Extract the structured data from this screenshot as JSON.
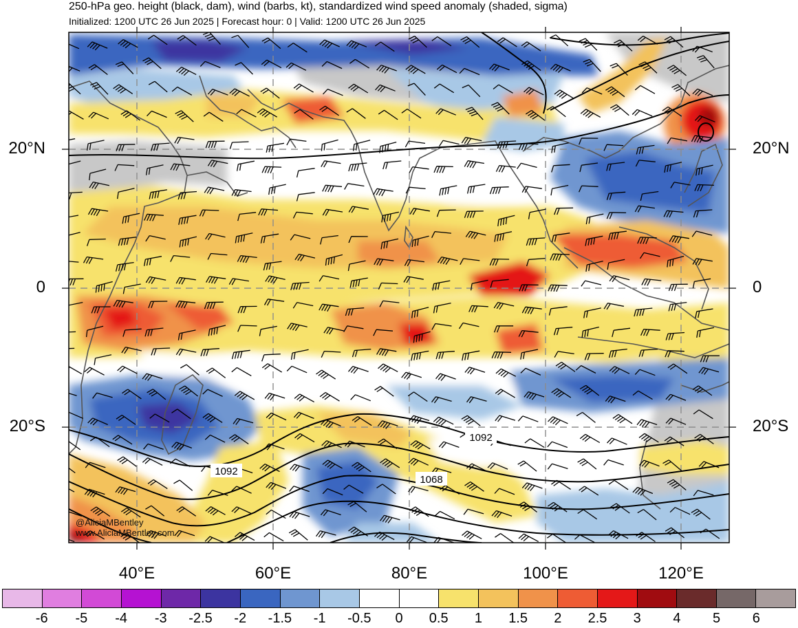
{
  "header": {
    "title": "250-hPa geo. height (black, dam), wind (barbs, kt), standardized wind speed anomaly (shaded, sigma)",
    "subtitle": "Initialized: 1200 UTC 26 Jun 2025 | Forecast hour: 0 | Valid: 1200 UTC 26 Jun 2025"
  },
  "map": {
    "lat_labels": [
      "20°N",
      "0",
      "20°S"
    ],
    "lon_labels": [
      "40°E",
      "60°E",
      "80°E",
      "100°E",
      "120°E"
    ],
    "contour_labels": [
      "1092",
      "1092",
      "1068"
    ],
    "credit": [
      "@AliciaMBentley",
      "www.AliciaMBentley.com"
    ]
  },
  "colorbar": {
    "labels": [
      "-6",
      "-5",
      "-4",
      "-3",
      "-2.5",
      "-2",
      "-1.5",
      "-1",
      "-0.5",
      "0",
      "0.5",
      "1",
      "1.5",
      "2",
      "2.5",
      "3",
      "4",
      "5",
      "6"
    ],
    "colors": [
      "#e8b8e8",
      "#e07ee0",
      "#d24ad6",
      "#b512d2",
      "#6e28a8",
      "#3c34a0",
      "#3a66c0",
      "#6f96d0",
      "#a8c8e6",
      "#ffffff",
      "#ffffff",
      "#f7e26c",
      "#f3c25c",
      "#f0924a",
      "#ee5c34",
      "#e41818",
      "#a00c10",
      "#6a2b2b",
      "#766868",
      "#a89c9c"
    ]
  }
}
